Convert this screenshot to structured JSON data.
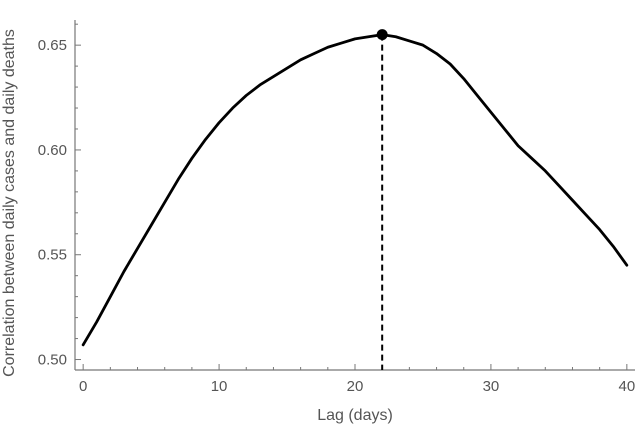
{
  "chart_data": {
    "type": "line",
    "title": "",
    "xlabel": "Lag (days)",
    "ylabel": "Correlation between daily cases and daily deaths",
    "xlim": [
      -0.6,
      40.6
    ],
    "ylim": [
      0.495,
      0.662
    ],
    "xticks": [
      0,
      10,
      20,
      30,
      40
    ],
    "xtick_labels": [
      "0",
      "10",
      "20",
      "30",
      "40"
    ],
    "yticks": [
      0.5,
      0.55,
      0.6,
      0.65
    ],
    "ytick_labels": [
      "0.50",
      "0.55",
      "0.60",
      "0.65"
    ],
    "grid": false,
    "legend": "none",
    "series": [
      {
        "x": [
          0,
          1,
          2,
          3,
          4,
          5,
          6,
          7,
          8,
          9,
          10,
          11,
          12,
          13,
          14,
          15,
          16,
          17,
          18,
          19,
          20,
          21,
          22,
          23,
          24,
          25,
          26,
          27,
          28,
          29,
          30,
          31,
          32,
          33,
          34,
          35,
          36,
          37,
          38,
          39,
          40
        ],
        "y": [
          0.507,
          0.518,
          0.53,
          0.542,
          0.553,
          0.564,
          0.575,
          0.586,
          0.596,
          0.605,
          0.613,
          0.62,
          0.626,
          0.631,
          0.635,
          0.639,
          0.643,
          0.646,
          0.649,
          0.651,
          0.653,
          0.654,
          0.655,
          0.654,
          0.652,
          0.65,
          0.646,
          0.641,
          0.634,
          0.626,
          0.618,
          0.61,
          0.602,
          0.596,
          0.59,
          0.583,
          0.576,
          0.569,
          0.562,
          0.554,
          0.545
        ],
        "color": "#000000"
      }
    ],
    "annotations": [
      {
        "type": "peak-marker",
        "x": 22,
        "y": 0.655,
        "dashed_vertical_line": true
      }
    ]
  }
}
